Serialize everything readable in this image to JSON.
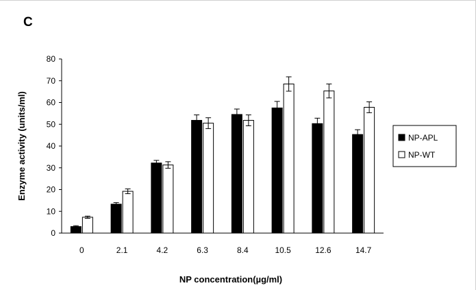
{
  "panel_label": "C",
  "chart_data": {
    "type": "bar",
    "xlabel": "NP concentration(µg/ml)",
    "ylabel": "Enzyme activity (units/ml)",
    "ylim": [
      0,
      80
    ],
    "yticks": [
      0,
      10,
      20,
      30,
      40,
      50,
      60,
      70,
      80
    ],
    "categories": [
      "0",
      "2.1",
      "4.2",
      "6.3",
      "8.4",
      "10.5",
      "12.6",
      "14.7"
    ],
    "grid": false,
    "legend_position": "right",
    "error_bars": true,
    "series": [
      {
        "name": "NP-APL",
        "color": "#000000",
        "values": [
          3,
          13.3,
          32.2,
          51.8,
          54.5,
          57.5,
          50.3,
          45.3
        ],
        "errors": [
          0.4,
          0.7,
          1.2,
          2.5,
          2.5,
          3,
          2.5,
          2.2
        ]
      },
      {
        "name": "NP-WT",
        "color": "#ffffff",
        "values": [
          7.3,
          19.2,
          31.3,
          50.5,
          51.8,
          68.5,
          65.3,
          57.8
        ],
        "errors": [
          0.5,
          1.1,
          1.5,
          2.5,
          2.5,
          3.3,
          3.2,
          2.5
        ]
      }
    ]
  }
}
